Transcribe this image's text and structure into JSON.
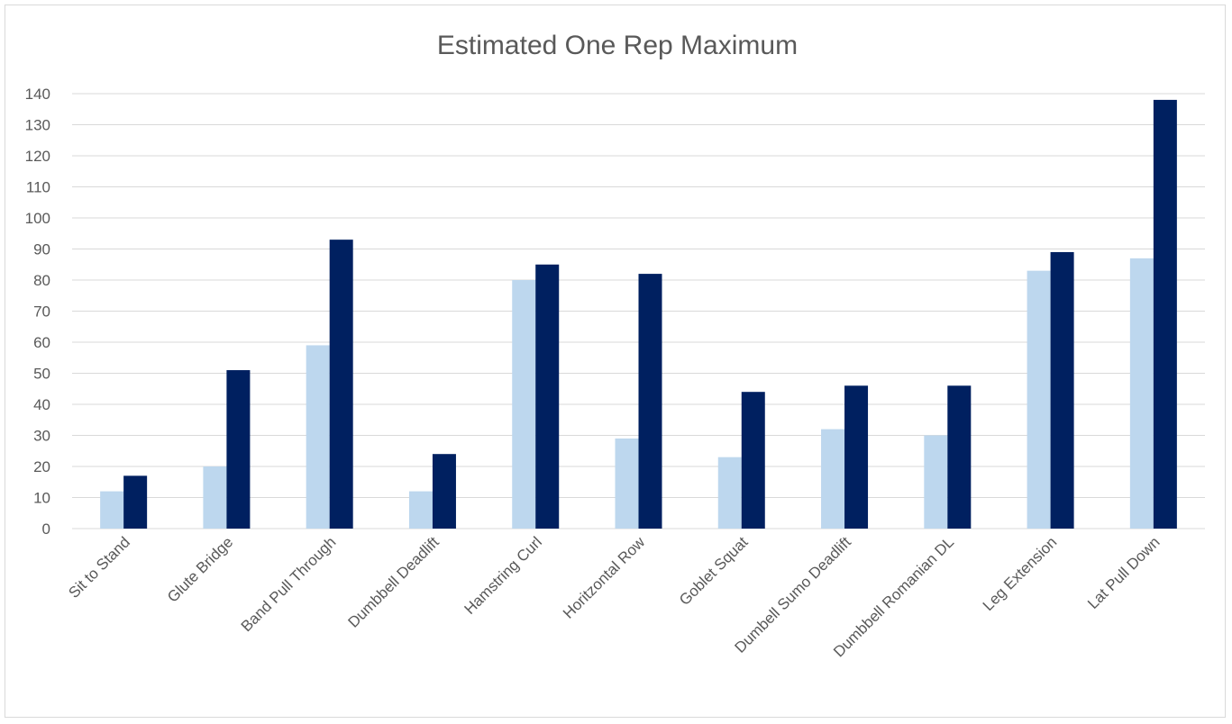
{
  "chart_data": {
    "type": "bar",
    "title": "Estimated One Rep Maximum",
    "xlabel": "",
    "ylabel": "",
    "ylim": [
      0,
      140
    ],
    "ytick_step": 10,
    "grid": true,
    "legend": "none",
    "categories": [
      "Sit to Stand",
      "Glute Bridge",
      "Band Pull Through",
      "Dumbbell Deadlift",
      "Hamstring Curl",
      "Horitzontal Row",
      "Goblet Squat",
      "Dumbell Sumo Deadlift",
      "Dumbbell Romanian DL",
      "Leg Extension",
      "Lat Pull Down"
    ],
    "series": [
      {
        "color": "#bdd7ee",
        "values": [
          12,
          20,
          59,
          12,
          80,
          29,
          23,
          32,
          30,
          83,
          87
        ]
      },
      {
        "color": "#002060",
        "values": [
          17,
          51,
          93,
          24,
          85,
          82,
          44,
          46,
          46,
          89,
          138
        ]
      }
    ],
    "colors": {
      "gridline": "#d9d9d9",
      "axis_text": "#595959",
      "title": "#595959",
      "border": "#d9d9d9"
    }
  }
}
